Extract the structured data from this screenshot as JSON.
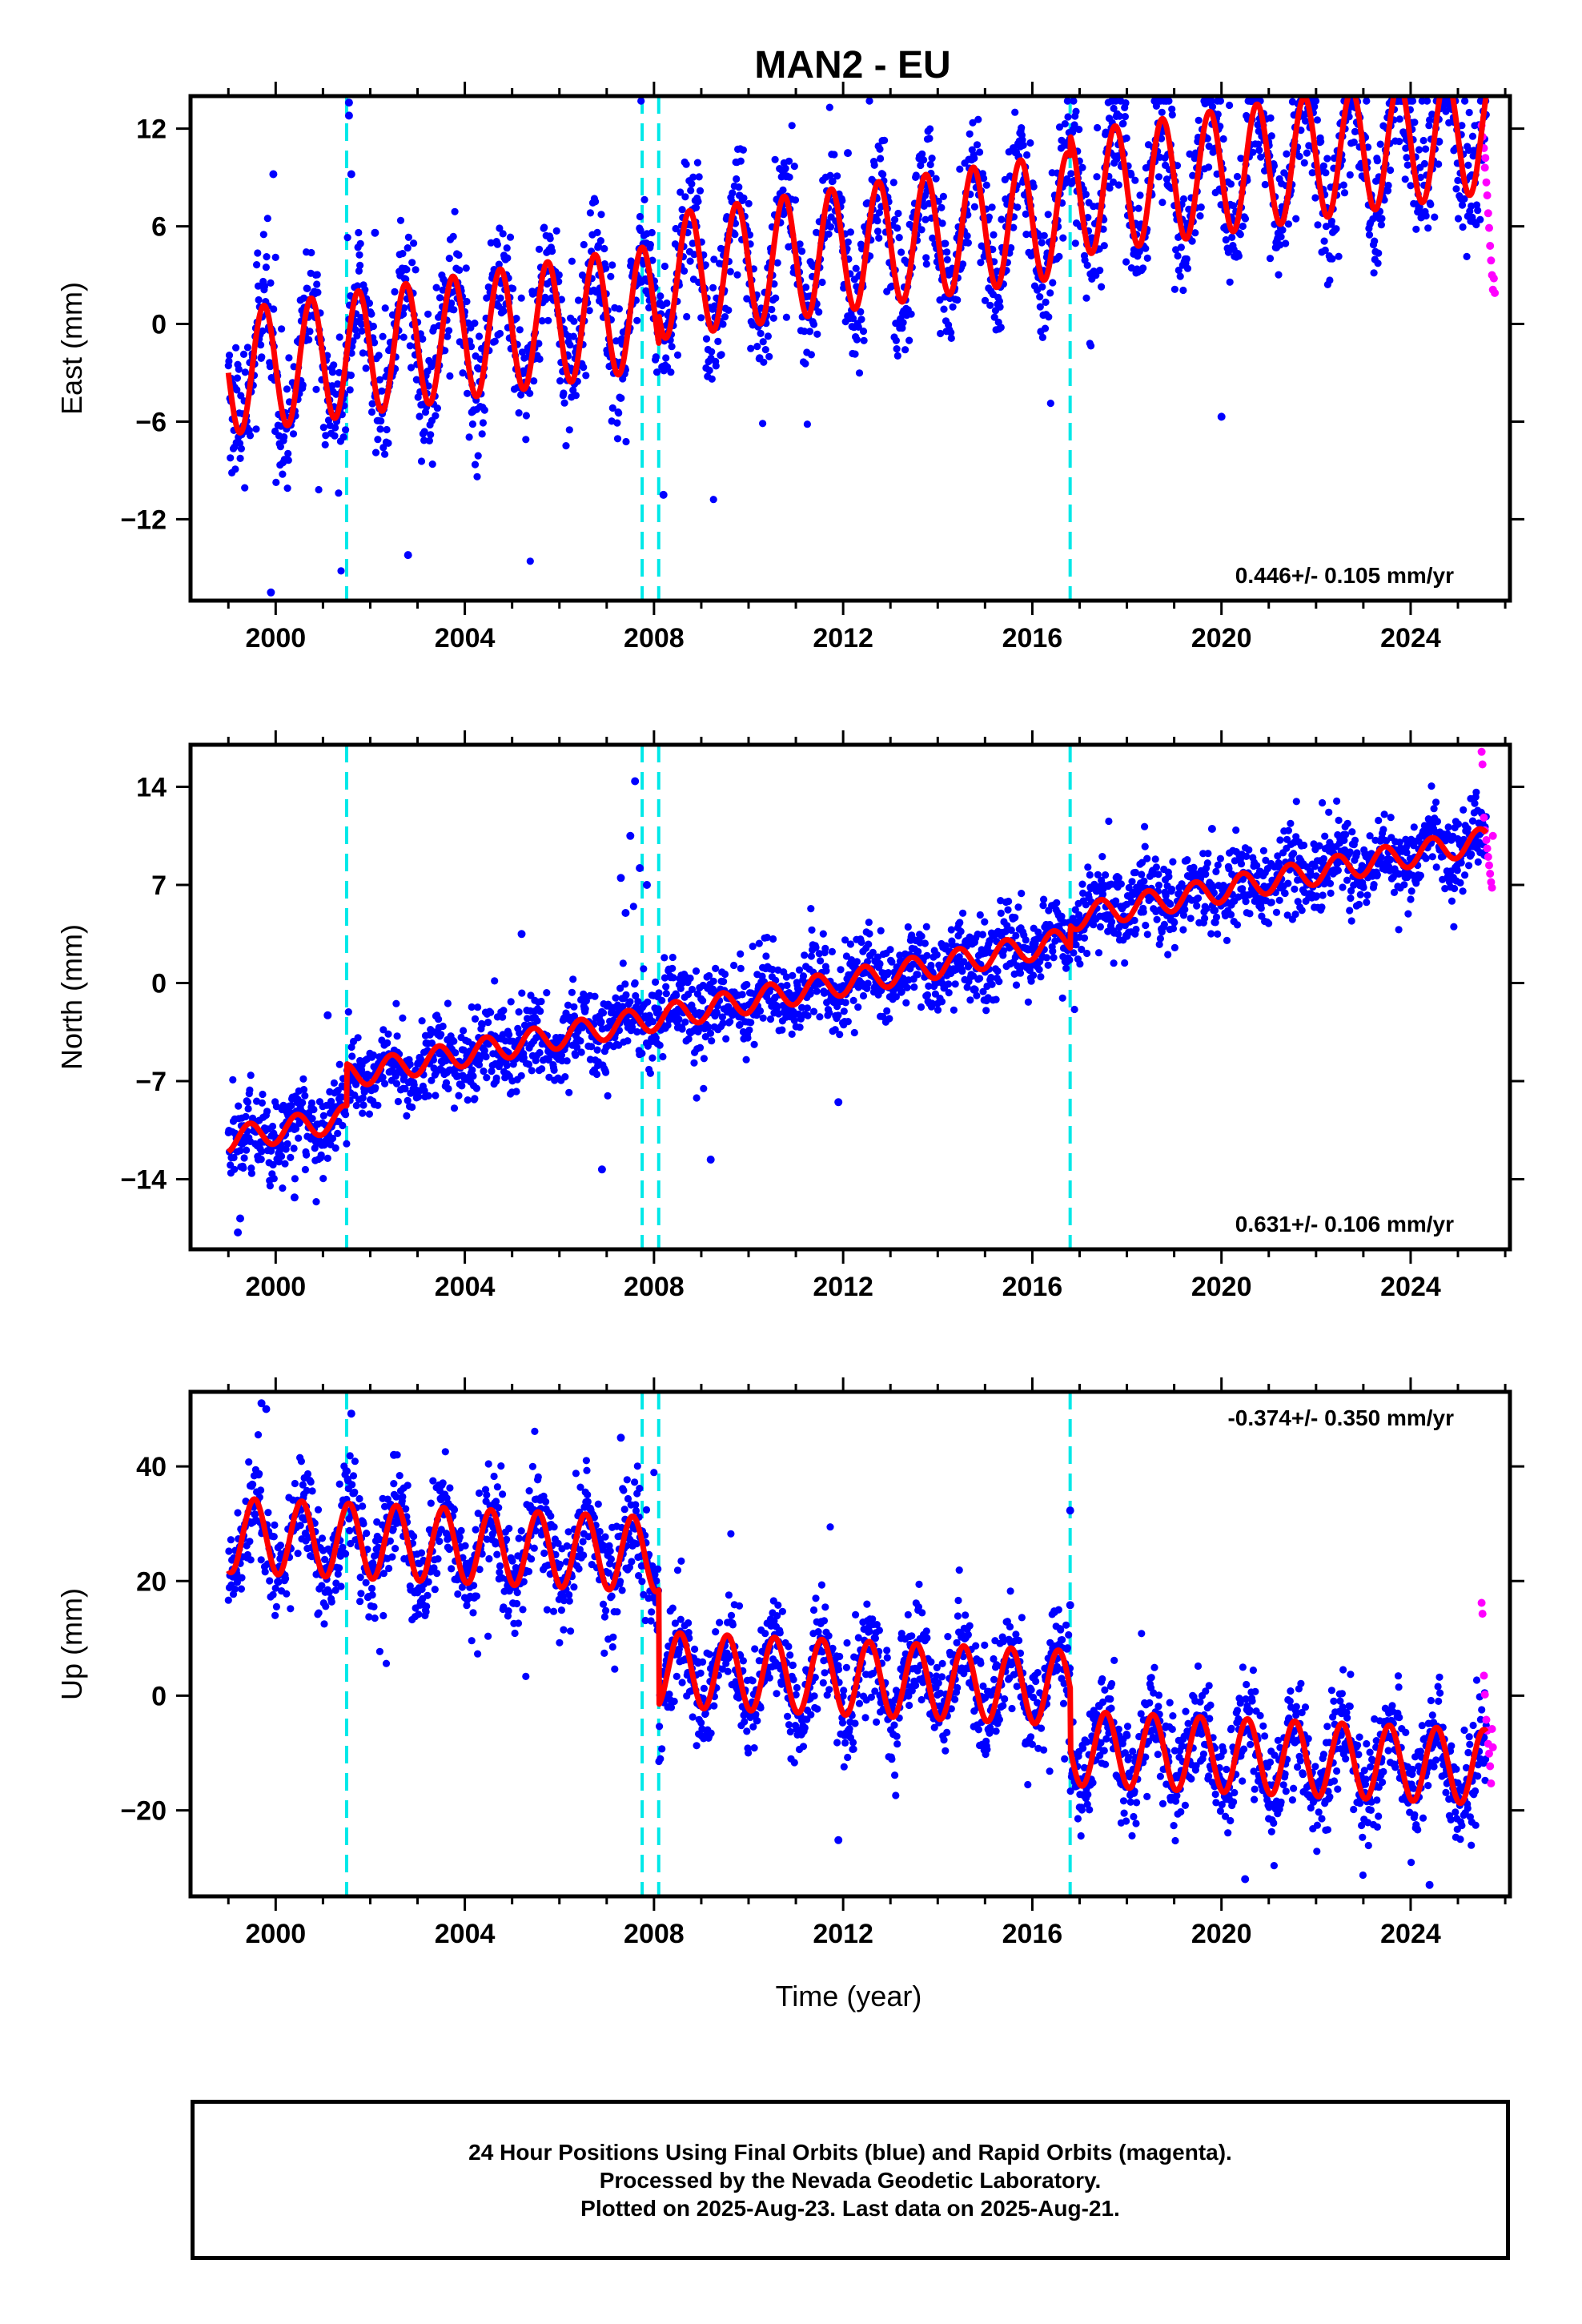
{
  "title": "MAN2 - EU",
  "xlabel": "Time (year)",
  "footer": {
    "line1": "24 Hour Positions Using Final Orbits (blue) and Rapid Orbits (magenta).",
    "line2": "Processed by the Nevada Geodetic Laboratory.",
    "line3": "Plotted on 2025-Aug-23. Last data on 2025-Aug-21."
  },
  "colors": {
    "final_orbits": "#0000ff",
    "rapid_orbits": "#ff00ff",
    "model_fit": "#ff0000",
    "offsets": "#00e8e8"
  },
  "chart_data": [
    {
      "type": "scatter",
      "component": "east",
      "ylabel": "East (mm)",
      "rate_label": "0.446+/- 0.105 mm/yr",
      "xlim": [
        1998.2,
        2026.1
      ],
      "ylim": [
        -17,
        14
      ],
      "xticks": [
        2000,
        2004,
        2008,
        2012,
        2016,
        2020,
        2024
      ],
      "yticks": [
        12,
        6,
        0,
        -6,
        -12
      ],
      "offset_epochs": [
        2001.5,
        2007.75,
        2008.1,
        2016.8
      ],
      "model": {
        "t_start": 1999.0,
        "t_end": 2025.6,
        "base": -3.0,
        "rate": 0.446,
        "amplitude": 3.8,
        "annual_phase": 0.5,
        "steps": [
          {
            "epoch": 2008.1,
            "size": 1.8
          },
          {
            "epoch": 2016.8,
            "size": 1.2
          }
        ]
      },
      "scatter_sigma": 2.0,
      "outliers": [
        [
          1999.95,
          9.2
        ],
        [
          1999.9,
          -16.5
        ],
        [
          2001.55,
          13.6
        ],
        [
          2001.55,
          12.8
        ],
        [
          2001.6,
          9.2
        ],
        [
          2002.1,
          5.6
        ],
        [
          2002.8,
          -14.2
        ],
        [
          2008.2,
          -10.5
        ],
        [
          2012.1,
          10.5
        ],
        [
          2015.6,
          10.8
        ],
        [
          2020.0,
          -5.7
        ],
        [
          2024.6,
          11.2
        ]
      ],
      "rapid_points": [
        [
          2025.5,
          12.2
        ],
        [
          2025.52,
          11.5
        ],
        [
          2025.55,
          10.8
        ],
        [
          2025.57,
          9.6
        ],
        [
          2025.6,
          8.7
        ],
        [
          2025.62,
          7.9
        ],
        [
          2025.64,
          6.8
        ],
        [
          2025.66,
          5.9
        ],
        [
          2025.68,
          4.8
        ],
        [
          2025.7,
          3.9
        ],
        [
          2025.72,
          3.0
        ],
        [
          2025.74,
          2.1
        ],
        [
          2025.76,
          2.8
        ],
        [
          2025.78,
          1.9
        ],
        [
          2025.58,
          10.2
        ]
      ]
    },
    {
      "type": "scatter",
      "component": "north",
      "ylabel": "North (mm)",
      "rate_label": "0.631+/- 0.106 mm/yr",
      "xlim": [
        1998.2,
        2026.1
      ],
      "ylim": [
        -19,
        17
      ],
      "xticks": [
        2000,
        2004,
        2008,
        2012,
        2016,
        2020,
        2024
      ],
      "yticks": [
        14,
        7,
        0,
        -7,
        -14
      ],
      "offset_epochs": [
        2001.5,
        2007.75,
        2008.1,
        2016.8
      ],
      "model": {
        "t_start": 1999.0,
        "t_end": 2025.6,
        "base": -11.2,
        "rate": 0.631,
        "amplitude": 0.9,
        "annual_phase": 0.2,
        "steps": [
          {
            "epoch": 2001.5,
            "size": 3.0
          },
          {
            "epoch": 2016.8,
            "size": 1.6
          }
        ]
      },
      "scatter_sigma": 1.4,
      "outliers": [
        [
          1999.2,
          -17.8
        ],
        [
          1999.25,
          -16.8
        ],
        [
          2007.6,
          14.4
        ],
        [
          2007.5,
          10.5
        ],
        [
          2007.3,
          7.5
        ],
        [
          2007.7,
          8.2
        ],
        [
          2007.85,
          7.0
        ],
        [
          2006.9,
          -13.3
        ],
        [
          2009.2,
          -12.6
        ],
        [
          2011.9,
          -8.5
        ],
        [
          2000.4,
          -15.3
        ],
        [
          2001.1,
          -2.3
        ],
        [
          2019.8,
          11.0
        ],
        [
          2005.2,
          3.5
        ],
        [
          2007.4,
          5.0
        ]
      ],
      "rapid_points": [
        [
          2025.5,
          16.5
        ],
        [
          2025.52,
          15.6
        ],
        [
          2025.55,
          11.8
        ],
        [
          2025.57,
          10.9
        ],
        [
          2025.6,
          10.2
        ],
        [
          2025.62,
          9.6
        ],
        [
          2025.64,
          9.0
        ],
        [
          2025.66,
          8.4
        ],
        [
          2025.68,
          7.8
        ],
        [
          2025.7,
          7.2
        ],
        [
          2025.72,
          6.8
        ],
        [
          2025.74,
          10.5
        ]
      ]
    },
    {
      "type": "scatter",
      "component": "up",
      "ylabel": "Up (mm)",
      "rate_label": "-0.374+/- 0.350 mm/yr",
      "xlim": [
        1998.2,
        2026.1
      ],
      "ylim": [
        -35,
        53
      ],
      "xticks": [
        2000,
        2004,
        2008,
        2012,
        2016,
        2020,
        2024
      ],
      "yticks": [
        40,
        20,
        0,
        -20
      ],
      "offset_epochs": [
        2001.5,
        2007.75,
        2008.1,
        2016.8
      ],
      "model": {
        "t_start": 1999.0,
        "t_end": 2025.6,
        "base": 28.0,
        "rate": -0.374,
        "amplitude": 6.5,
        "annual_phase": 0.3,
        "steps": [
          {
            "epoch": 2008.1,
            "size": -20.0
          },
          {
            "epoch": 2016.8,
            "size": -10.5
          }
        ]
      },
      "scatter_sigma": 4.5,
      "outliers": [
        [
          1999.7,
          51.0
        ],
        [
          1999.8,
          50.0
        ],
        [
          2001.6,
          49.2
        ],
        [
          2016.8,
          32.3
        ],
        [
          2011.9,
          -25.2
        ],
        [
          2016.8,
          15.8
        ],
        [
          2020.5,
          -32.0
        ],
        [
          2024.4,
          -33.0
        ],
        [
          2007.3,
          45.0
        ],
        [
          2002.5,
          42.0
        ]
      ],
      "rapid_points": [
        [
          2025.5,
          16.2
        ],
        [
          2025.52,
          14.3
        ],
        [
          2025.55,
          3.5
        ],
        [
          2025.57,
          0.2
        ],
        [
          2025.6,
          -4.2
        ],
        [
          2025.62,
          -6.1
        ],
        [
          2025.64,
          -8.4
        ],
        [
          2025.66,
          -10.1
        ],
        [
          2025.68,
          -12.3
        ],
        [
          2025.7,
          -15.3
        ],
        [
          2025.72,
          -5.8
        ],
        [
          2025.74,
          -9.0
        ]
      ]
    }
  ]
}
